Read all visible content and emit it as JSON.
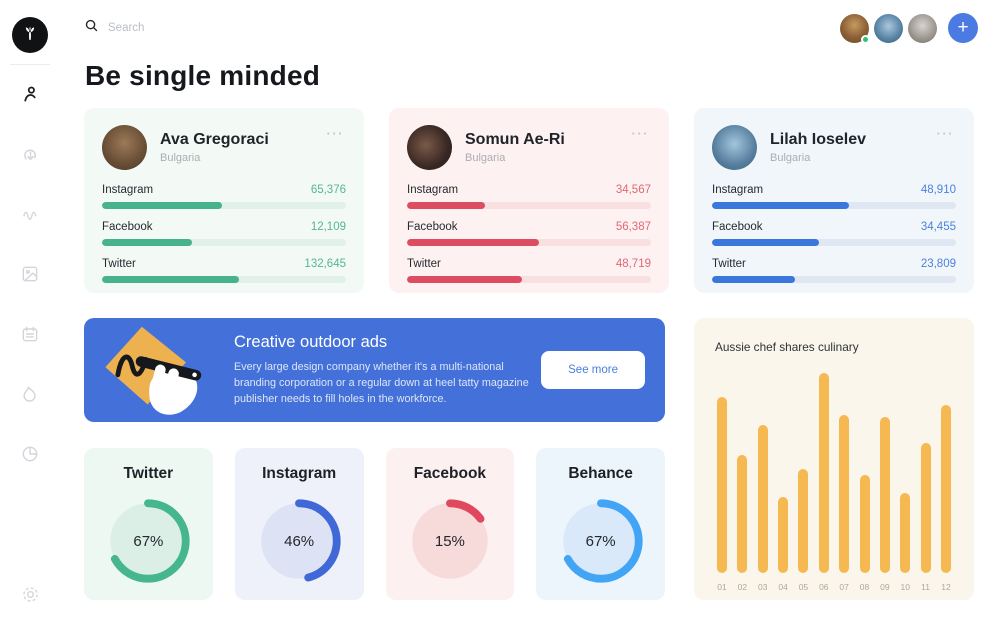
{
  "topbar": {
    "search_placeholder": "Search",
    "search_value": ""
  },
  "page": {
    "title": "Be single minded"
  },
  "icons": {
    "logo": "sprout",
    "search": "magnifier",
    "sidebar": [
      "user",
      "download-cloud",
      "activity",
      "image",
      "calendar",
      "flame",
      "pie-chart",
      "settings"
    ],
    "card_menu": "ellipsis",
    "add": "plus"
  },
  "colors": {
    "banner_bg": "#4471d9",
    "add_button": "#4a7ae2",
    "green_accent": "#47b28c",
    "red_accent": "#dd4d62",
    "blue_accent": "#3a76db",
    "behance_accent": "#42a4f5",
    "bar_orange": "#f6b851",
    "chart_panel_bg": "#fbf6ec",
    "online_dot": "#2fc076"
  },
  "profiles": [
    {
      "name": "Ava Gregoraci",
      "location": "Bulgaria",
      "accent": "#47b28c",
      "stats": [
        {
          "label": "Instagram",
          "value": "65,376",
          "pct": 49
        },
        {
          "label": "Facebook",
          "value": "12,109",
          "pct": 37
        },
        {
          "label": "Twitter",
          "value": "132,645",
          "pct": 56
        }
      ]
    },
    {
      "name": "Somun Ae-Ri",
      "location": "Bulgaria",
      "accent": "#dd4d62",
      "stats": [
        {
          "label": "Instagram",
          "value": "34,567",
          "pct": 32
        },
        {
          "label": "Facebook",
          "value": "56,387",
          "pct": 54
        },
        {
          "label": "Twitter",
          "value": "48,719",
          "pct": 47
        }
      ]
    },
    {
      "name": "Lilah Ioselev",
      "location": "Bulgaria",
      "accent": "#3a76db",
      "stats": [
        {
          "label": "Instagram",
          "value": "48,910",
          "pct": 56
        },
        {
          "label": "Facebook",
          "value": "34,455",
          "pct": 44
        },
        {
          "label": "Twitter",
          "value": "23,809",
          "pct": 34
        }
      ]
    }
  ],
  "banner": {
    "title": "Creative outdoor ads",
    "body": "Every large design company whether it's a multi-national branding corporation or a regular down at heel tatty magazine publisher needs to fill holes in the workforce.",
    "button_label": "See more"
  },
  "gauges": [
    {
      "label": "Twitter",
      "pct": 67,
      "display": "67%",
      "ring": "#45b68e",
      "bg": "#eef8f3",
      "inner": "#dcefe6"
    },
    {
      "label": "Instagram",
      "pct": 46,
      "display": "46%",
      "ring": "#4068d6",
      "bg": "#eef1fa",
      "inner": "#dde3f4"
    },
    {
      "label": "Facebook",
      "pct": 15,
      "display": "15%",
      "ring": "#e0485e",
      "bg": "#fdf0f0",
      "inner": "#f7dada"
    },
    {
      "label": "Behance",
      "pct": 67,
      "display": "67%",
      "ring": "#42a4f5",
      "bg": "#ecf4fc",
      "inner": "#d9e9f9"
    }
  ],
  "chart_data": {
    "type": "bar",
    "title": "Aussie chef shares culinary",
    "categories": [
      "01",
      "02",
      "03",
      "04",
      "05",
      "06",
      "07",
      "08",
      "09",
      "10",
      "11",
      "12"
    ],
    "values": [
      88,
      59,
      74,
      38,
      52,
      100,
      79,
      49,
      78,
      40,
      65,
      84
    ],
    "ylabel": "relative height (% of tallest bar)",
    "xlabel": "",
    "grid": false,
    "legend": false,
    "bar_color": "#f6b851"
  }
}
